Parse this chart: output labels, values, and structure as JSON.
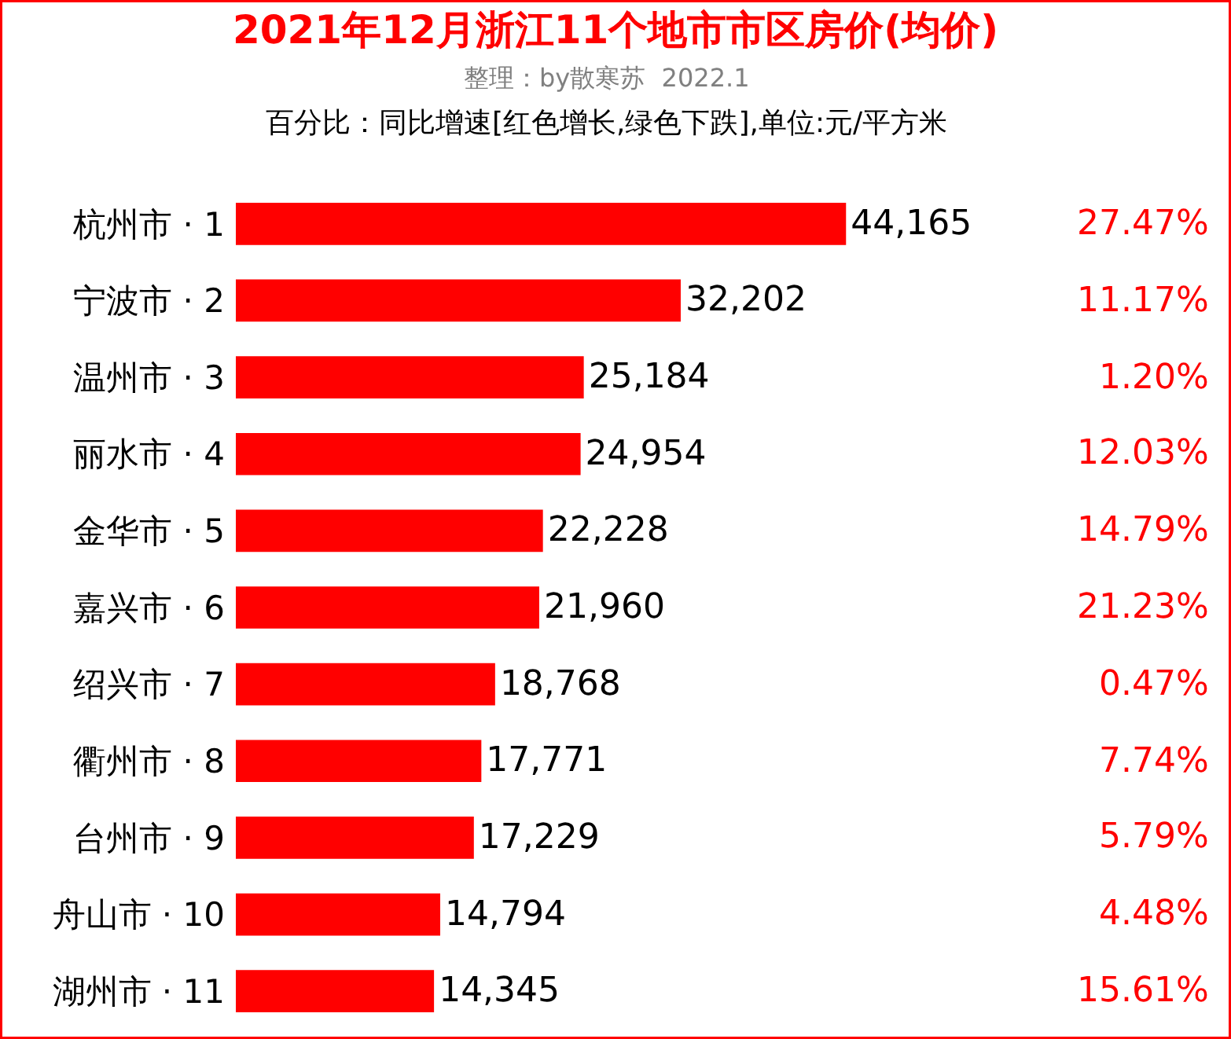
{
  "chart_data": {
    "type": "bar",
    "orientation": "horizontal",
    "title": "2021年12月浙江11个地市市区房价(均价)",
    "subtitle": "整理：by散寒苏  2022.1",
    "categories": [
      "杭州市 · 1",
      "宁波市 · 2",
      "温州市 · 3",
      "丽水市 · 4",
      "金华市 · 5",
      "嘉兴市 · 6",
      "绍兴市 · 7",
      "衢州市 · 8",
      "台州市 · 9",
      "舟山市 · 10",
      "湖州市 · 11"
    ],
    "values": [
      44165,
      32202,
      25184,
      24954,
      22228,
      21960,
      18768,
      17771,
      17229,
      14794,
      14345
    ],
    "value_labels": [
      "44,165",
      "32,202",
      "25,184",
      "24,954",
      "22,228",
      "21,960",
      "18,768",
      "17,771",
      "17,229",
      "14,794",
      "14,345"
    ],
    "color": "#ff0000",
    "annotations": [
      "百分比：同比增速[红色增长,绿色下跌],单位:元/平方米",
      "27.47%",
      "11.17%",
      "1.20%",
      "12.03%",
      "14.79%",
      "21.23%",
      "0.47%",
      "7.74%",
      "5.79%",
      "4.48%",
      "15.61%"
    ]
  }
}
